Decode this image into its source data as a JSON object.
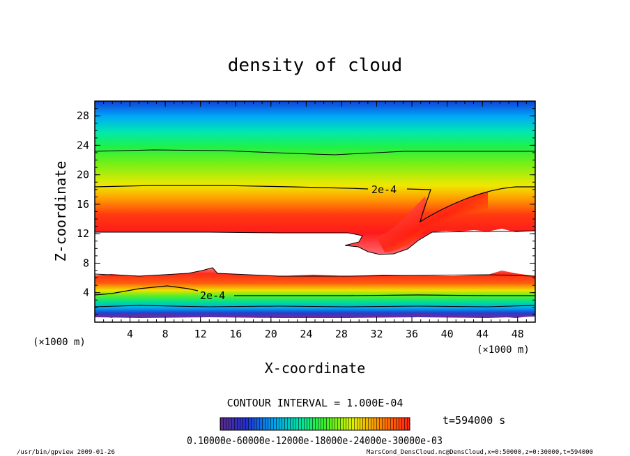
{
  "footer": {
    "left": "/usr/bin/gpview  2009-01-26",
    "right": "MarsCond_DensCloud.nc@DensCloud,x=0:50000,z=0:30000,t=594000"
  },
  "chart_data": {
    "type": "heatmap",
    "title": "density of cloud",
    "xlabel": "X-coordinate",
    "ylabel": "Z-coordinate",
    "x_unit": "(×1000 m)",
    "y_unit": "(×1000 m)",
    "xlim": [
      0,
      50
    ],
    "ylim": [
      0,
      30
    ],
    "xticks": [
      4,
      8,
      12,
      16,
      20,
      24,
      28,
      32,
      36,
      40,
      44,
      48
    ],
    "yticks": [
      4,
      8,
      12,
      16,
      20,
      24,
      28
    ],
    "contour_interval_text": "CONTOUR INTERVAL = 1.000E-04",
    "time_label": "t=594000 s",
    "contour_labels": [
      {
        "text": "2e-4",
        "x": 32.5,
        "z": 18.1
      },
      {
        "text": "2e-4",
        "x": 14.2,
        "z": 3.5
      }
    ],
    "colorbar": {
      "min": 0.0001,
      "max": 0.0007,
      "label_text": "0.10000e-60000e-12000e-18000e-24000e-30000e-03",
      "colors": [
        "#5a2a8a",
        "#2030d0",
        "#00a0f0",
        "#00e0a0",
        "#40f020",
        "#e0f000",
        "#ff8000",
        "#ff2010"
      ]
    },
    "features": {
      "upper_layer_top_contour_z": 23.0,
      "upper_2e-4_contour_z": 18.3,
      "upper_layer_bottom_z": 12.2,
      "descending_plume_x_range": [
        29,
        40
      ],
      "descending_plume_bottom_z": 9.3,
      "lower_layer_z_range": [
        1.0,
        6.5
      ],
      "lower_2e-4_contour_z": 3.5
    }
  }
}
